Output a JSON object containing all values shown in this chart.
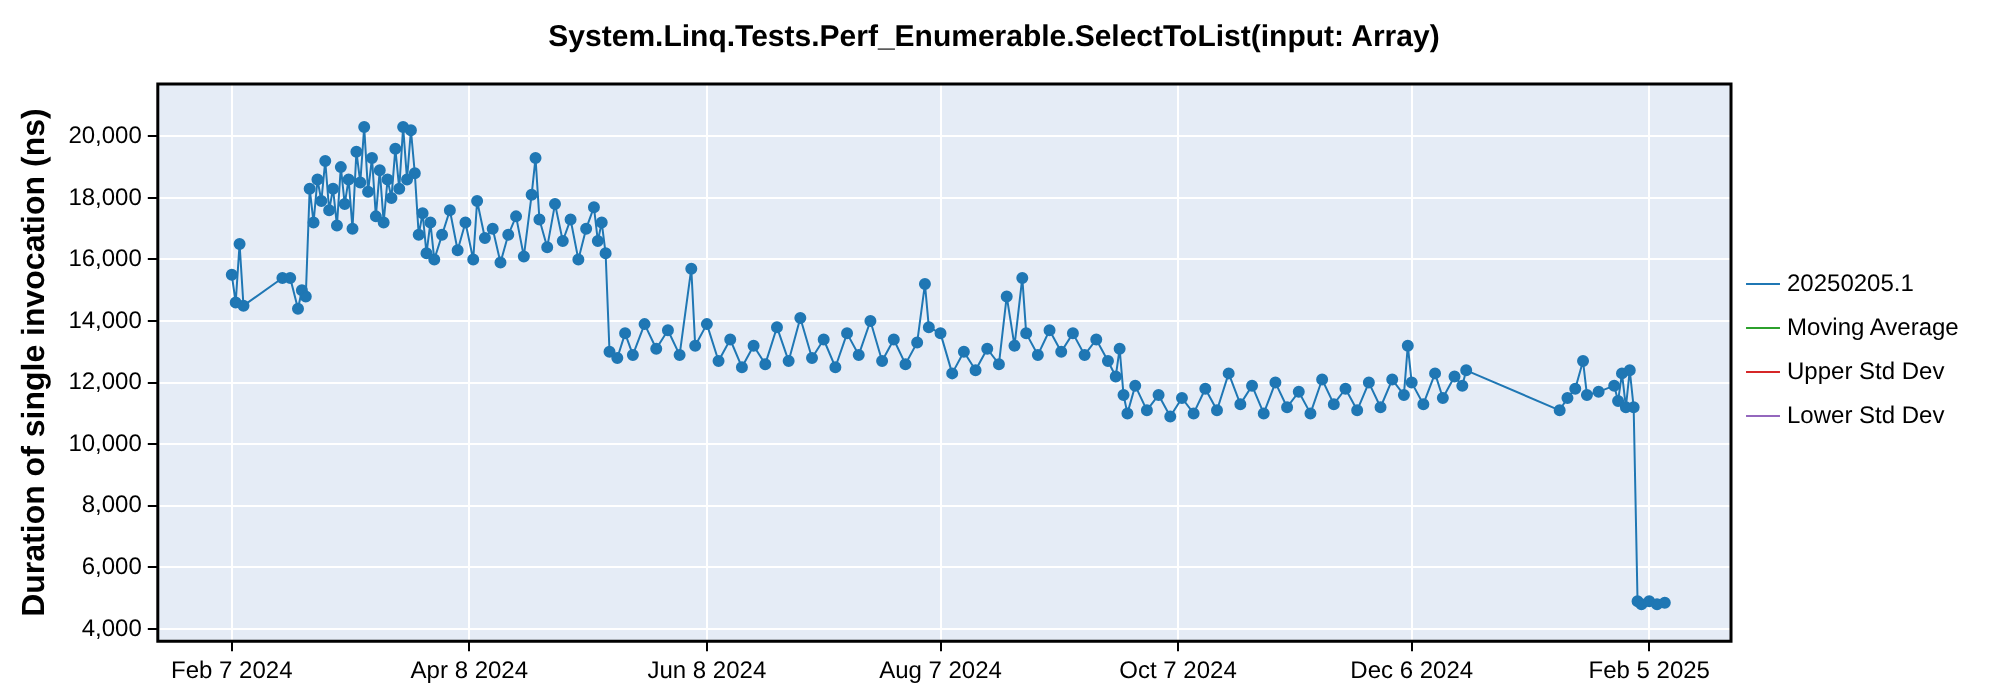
{
  "chart_data": {
    "type": "line",
    "title": "System.Linq.Tests.Perf_Enumerable.SelectToList(input: Array)",
    "ylabel": "Duration of single invocation (ns)",
    "x": [
      "2024-02-07",
      "2024-02-08",
      "2024-02-09",
      "2024-02-10",
      "2024-02-20",
      "2024-02-22",
      "2024-02-24",
      "2024-02-25",
      "2024-02-26",
      "2024-02-27",
      "2024-02-28",
      "2024-02-29",
      "2024-03-01",
      "2024-03-02",
      "2024-03-03",
      "2024-03-04",
      "2024-03-05",
      "2024-03-06",
      "2024-03-07",
      "2024-03-08",
      "2024-03-09",
      "2024-03-10",
      "2024-03-11",
      "2024-03-12",
      "2024-03-13",
      "2024-03-14",
      "2024-03-15",
      "2024-03-16",
      "2024-03-17",
      "2024-03-18",
      "2024-03-19",
      "2024-03-20",
      "2024-03-21",
      "2024-03-22",
      "2024-03-23",
      "2024-03-24",
      "2024-03-25",
      "2024-03-26",
      "2024-03-27",
      "2024-03-28",
      "2024-03-29",
      "2024-03-30",
      "2024-04-01",
      "2024-04-03",
      "2024-04-05",
      "2024-04-07",
      "2024-04-09",
      "2024-04-10",
      "2024-04-12",
      "2024-04-14",
      "2024-04-16",
      "2024-04-18",
      "2024-04-20",
      "2024-04-22",
      "2024-04-24",
      "2024-04-25",
      "2024-04-26",
      "2024-04-28",
      "2024-04-30",
      "2024-05-02",
      "2024-05-04",
      "2024-05-06",
      "2024-05-08",
      "2024-05-10",
      "2024-05-11",
      "2024-05-12",
      "2024-05-13",
      "2024-05-14",
      "2024-05-16",
      "2024-05-18",
      "2024-05-20",
      "2024-05-23",
      "2024-05-26",
      "2024-05-29",
      "2024-06-01",
      "2024-06-04",
      "2024-06-05",
      "2024-06-08",
      "2024-06-11",
      "2024-06-14",
      "2024-06-17",
      "2024-06-20",
      "2024-06-23",
      "2024-06-26",
      "2024-06-29",
      "2024-07-02",
      "2024-07-05",
      "2024-07-08",
      "2024-07-11",
      "2024-07-14",
      "2024-07-17",
      "2024-07-20",
      "2024-07-23",
      "2024-07-26",
      "2024-07-29",
      "2024-08-01",
      "2024-08-03",
      "2024-08-04",
      "2024-08-07",
      "2024-08-10",
      "2024-08-13",
      "2024-08-16",
      "2024-08-19",
      "2024-08-22",
      "2024-08-24",
      "2024-08-26",
      "2024-08-28",
      "2024-08-29",
      "2024-09-01",
      "2024-09-04",
      "2024-09-07",
      "2024-09-10",
      "2024-09-13",
      "2024-09-16",
      "2024-09-19",
      "2024-09-21",
      "2024-09-22",
      "2024-09-23",
      "2024-09-24",
      "2024-09-26",
      "2024-09-29",
      "2024-10-02",
      "2024-10-05",
      "2024-10-08",
      "2024-10-11",
      "2024-10-14",
      "2024-10-17",
      "2024-10-20",
      "2024-10-23",
      "2024-10-26",
      "2024-10-29",
      "2024-11-01",
      "2024-11-04",
      "2024-11-07",
      "2024-11-10",
      "2024-11-13",
      "2024-11-16",
      "2024-11-19",
      "2024-11-22",
      "2024-11-25",
      "2024-11-28",
      "2024-12-01",
      "2024-12-04",
      "2024-12-05",
      "2024-12-06",
      "2024-12-09",
      "2024-12-12",
      "2024-12-14",
      "2024-12-17",
      "2024-12-19",
      "2024-12-20",
      "2025-01-13",
      "2025-01-15",
      "2025-01-17",
      "2025-01-19",
      "2025-01-20",
      "2025-01-23",
      "2025-01-27",
      "2025-01-28",
      "2025-01-29",
      "2025-01-30",
      "2025-01-31",
      "2025-02-01",
      "2025-02-02",
      "2025-02-03",
      "2025-02-05",
      "2025-02-07",
      "2025-02-09"
    ],
    "series": [
      {
        "name": "20250205.1",
        "color": "#1f77b4",
        "values": [
          15500,
          14600,
          16500,
          14500,
          15400,
          15400,
          14400,
          15000,
          14800,
          18300,
          17200,
          18600,
          17900,
          19200,
          17600,
          18300,
          17100,
          19000,
          17800,
          18600,
          17000,
          19500,
          18500,
          20300,
          18200,
          19300,
          17400,
          18900,
          17200,
          18600,
          18000,
          19600,
          18300,
          20300,
          18600,
          20200,
          18800,
          16800,
          17500,
          16200,
          17200,
          16000,
          16800,
          17600,
          16300,
          17200,
          16000,
          17900,
          16700,
          17000,
          15900,
          16800,
          17400,
          16100,
          18100,
          19300,
          17300,
          16400,
          17800,
          16600,
          17300,
          16000,
          17000,
          17700,
          16600,
          17200,
          16200,
          13000,
          12800,
          13600,
          12900,
          13900,
          13100,
          13700,
          12900,
          15700,
          13200,
          13900,
          12700,
          13400,
          12500,
          13200,
          12600,
          13800,
          12700,
          14100,
          12800,
          13400,
          12500,
          13600,
          12900,
          14000,
          12700,
          13400,
          12600,
          13300,
          15200,
          13800,
          13600,
          12300,
          13000,
          12400,
          13100,
          12600,
          14800,
          13200,
          15400,
          13600,
          12900,
          13700,
          13000,
          13600,
          12900,
          13400,
          12700,
          12200,
          13100,
          11600,
          11000,
          11900,
          11100,
          11600,
          10900,
          11500,
          11000,
          11800,
          11100,
          12300,
          11300,
          11900,
          11000,
          12000,
          11200,
          11700,
          11000,
          12100,
          11300,
          11800,
          11100,
          12000,
          11200,
          12100,
          11600,
          13200,
          12000,
          11300,
          12300,
          11500,
          12200,
          11900,
          12400,
          11100,
          11500,
          11800,
          12700,
          11600,
          11700,
          11900,
          11400,
          12300,
          11200,
          12400,
          11200,
          4900,
          4800,
          4900,
          4800,
          4850
        ]
      },
      {
        "name": "Moving Average",
        "color": "#2ca02c",
        "values": [
          null,
          null,
          null,
          null,
          null,
          null,
          null,
          null,
          null,
          null,
          null,
          null,
          null,
          null,
          null,
          null,
          null,
          null,
          null,
          null,
          null,
          null,
          null,
          null,
          null,
          null,
          null,
          null,
          null,
          null,
          null,
          null,
          null,
          null,
          null,
          null,
          null,
          null,
          null,
          null,
          null,
          null,
          null,
          null,
          null,
          null,
          null,
          null,
          null,
          null,
          null,
          null,
          null,
          null,
          null,
          null,
          null,
          null,
          null,
          null,
          null,
          null,
          null,
          null,
          null,
          null,
          null,
          null,
          null,
          null,
          null,
          null,
          null,
          null,
          null,
          null,
          null,
          null,
          null,
          null,
          null,
          null,
          null,
          null,
          null,
          null,
          null,
          null,
          null,
          null,
          null,
          null,
          null,
          null,
          null,
          null,
          null,
          null,
          null,
          null,
          null,
          null,
          null,
          null,
          null,
          null,
          null,
          null,
          null,
          null,
          null,
          null,
          null,
          null,
          null,
          null,
          null,
          null,
          null,
          null,
          null,
          null,
          null,
          null,
          null,
          null,
          null,
          null,
          null,
          null,
          null,
          null,
          null,
          null,
          null,
          null,
          null,
          null,
          null,
          null,
          null,
          null,
          null,
          null,
          null,
          null,
          null,
          null,
          null,
          null,
          null,
          null,
          null,
          null,
          null,
          null,
          null,
          null,
          null,
          null,
          null,
          null,
          null,
          null,
          null,
          null,
          null,
          null
        ]
      },
      {
        "name": "Upper Std Dev",
        "color": "#d62728",
        "values": [
          null,
          null,
          null,
          null,
          null,
          null,
          null,
          null,
          null,
          null,
          null,
          null,
          null,
          null,
          null,
          null,
          null,
          null,
          null,
          null,
          null,
          null,
          null,
          null,
          null,
          null,
          null,
          null,
          null,
          null,
          null,
          null,
          null,
          null,
          null,
          null,
          null,
          null,
          null,
          null,
          null,
          null,
          null,
          null,
          null,
          null,
          null,
          null,
          null,
          null,
          null,
          null,
          null,
          null,
          null,
          null,
          null,
          null,
          null,
          null,
          null,
          null,
          null,
          null,
          null,
          null,
          null,
          null,
          null,
          null,
          null,
          null,
          null,
          null,
          null,
          null,
          null,
          null,
          null,
          null,
          null,
          null,
          null,
          null,
          null,
          null,
          null,
          null,
          null,
          null,
          null,
          null,
          null,
          null,
          null,
          null,
          null,
          null,
          null,
          null,
          null,
          null,
          null,
          null,
          null,
          null,
          null,
          null,
          null,
          null,
          null,
          null,
          null,
          null,
          null,
          null,
          null,
          null,
          null,
          null,
          null,
          null,
          null,
          null,
          null,
          null,
          null,
          null,
          null,
          null,
          null,
          null,
          null,
          null,
          null,
          null,
          null,
          null,
          null,
          null,
          null,
          null,
          null,
          null,
          null,
          null,
          null,
          null,
          null,
          null,
          null,
          null,
          null,
          null,
          null,
          null,
          null,
          null,
          null,
          null,
          null,
          null,
          null,
          null,
          null,
          null,
          null,
          null
        ]
      },
      {
        "name": "Lower Std Dev",
        "color": "#9467bd",
        "values": [
          null,
          null,
          null,
          null,
          null,
          null,
          null,
          null,
          null,
          null,
          null,
          null,
          null,
          null,
          null,
          null,
          null,
          null,
          null,
          null,
          null,
          null,
          null,
          null,
          null,
          null,
          null,
          null,
          null,
          null,
          null,
          null,
          null,
          null,
          null,
          null,
          null,
          null,
          null,
          null,
          null,
          null,
          null,
          null,
          null,
          null,
          null,
          null,
          null,
          null,
          null,
          null,
          null,
          null,
          null,
          null,
          null,
          null,
          null,
          null,
          null,
          null,
          null,
          null,
          null,
          null,
          null,
          null,
          null,
          null,
          null,
          null,
          null,
          null,
          null,
          null,
          null,
          null,
          null,
          null,
          null,
          null,
          null,
          null,
          null,
          null,
          null,
          null,
          null,
          null,
          null,
          null,
          null,
          null,
          null,
          null,
          null,
          null,
          null,
          null,
          null,
          null,
          null,
          null,
          null,
          null,
          null,
          null,
          null,
          null,
          null,
          null,
          null,
          null,
          null,
          null,
          null,
          null,
          null,
          null,
          null,
          null,
          null,
          null,
          null,
          null,
          null,
          null,
          null,
          null,
          null,
          null,
          null,
          null,
          null,
          null,
          null,
          null,
          null,
          null,
          null,
          null,
          null,
          null,
          null,
          null,
          null,
          null,
          null,
          null,
          null,
          null,
          null,
          null,
          null,
          null,
          null,
          null,
          null,
          null,
          null,
          null,
          null,
          null,
          null,
          null,
          null,
          null
        ]
      }
    ],
    "xlim": [
      "2024-01-19",
      "2025-02-26"
    ],
    "xticks": [
      {
        "value": "2024-02-07",
        "label": "Feb 7 2024"
      },
      {
        "value": "2024-04-08",
        "label": "Apr 8 2024"
      },
      {
        "value": "2024-06-08",
        "label": "Jun 8 2024"
      },
      {
        "value": "2024-08-07",
        "label": "Aug 7 2024"
      },
      {
        "value": "2024-10-07",
        "label": "Oct 7 2024"
      },
      {
        "value": "2024-12-06",
        "label": "Dec 6 2024"
      },
      {
        "value": "2025-02-05",
        "label": "Feb 5 2025"
      }
    ],
    "ylim": [
      3600,
      21700
    ],
    "yticks": [
      {
        "value": 4000,
        "label": "4,000"
      },
      {
        "value": 6000,
        "label": "6,000"
      },
      {
        "value": 8000,
        "label": "8,000"
      },
      {
        "value": 10000,
        "label": "10,000"
      },
      {
        "value": 12000,
        "label": "12,000"
      },
      {
        "value": 14000,
        "label": "14,000"
      },
      {
        "value": 16000,
        "label": "16,000"
      },
      {
        "value": 18000,
        "label": "18,000"
      },
      {
        "value": 20000,
        "label": "20,000"
      }
    ],
    "grid": true,
    "legend": "right",
    "marker": "circle",
    "line_style": "solid"
  }
}
